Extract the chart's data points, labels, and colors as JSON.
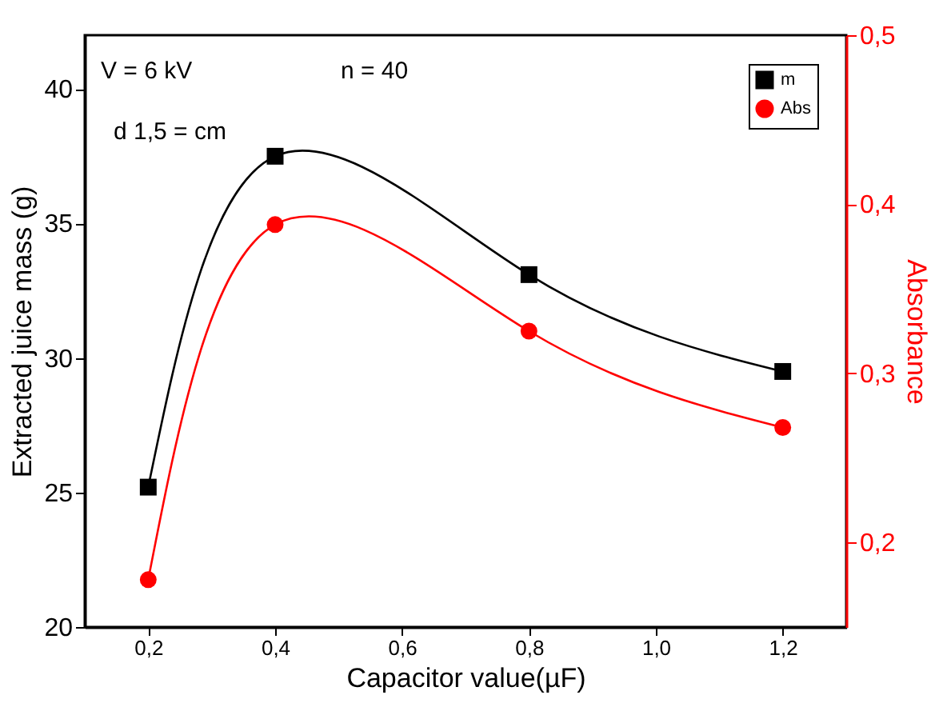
{
  "chart_data": {
    "type": "line",
    "xlabel": "Capacitor value(µF)",
    "ylabel": "Extracted juice mass (g)",
    "y2label": "Absorbance",
    "x": [
      0.2,
      0.4,
      0.8,
      1.2
    ],
    "series": [
      {
        "name": "m",
        "color": "#000000",
        "marker": "square",
        "values": [
          25.2,
          37.5,
          33.1,
          29.5
        ]
      },
      {
        "name": "Abs",
        "color": "#ff0000",
        "marker": "circle",
        "axis": "y2",
        "values": [
          0.178,
          0.388,
          0.325,
          0.268
        ]
      }
    ],
    "xlim": [
      0.1,
      1.3
    ],
    "xticks": [
      {
        "value": 0.2,
        "label": "0,2"
      },
      {
        "value": 0.4,
        "label": "0,4"
      },
      {
        "value": 0.6,
        "label": "0,6"
      },
      {
        "value": 0.8,
        "label": "0,8"
      },
      {
        "value": 1.0,
        "label": "1,0"
      },
      {
        "value": 1.2,
        "label": "1,2"
      }
    ],
    "ylim": [
      20,
      42
    ],
    "yticks": [
      20,
      25,
      30,
      35,
      40
    ],
    "y2lim": [
      0.15,
      0.5
    ],
    "y2ticks": [
      {
        "value": 0.2,
        "label": "0,2"
      },
      {
        "value": 0.3,
        "label": "0,3"
      },
      {
        "value": 0.4,
        "label": "0,4"
      },
      {
        "value": 0.5,
        "label": "0,5"
      }
    ],
    "annotations": [
      "V =  6 kV",
      "n = 40",
      "d 1,5 = cm"
    ],
    "grid": false,
    "legend": "top right",
    "line_style": "solid"
  }
}
